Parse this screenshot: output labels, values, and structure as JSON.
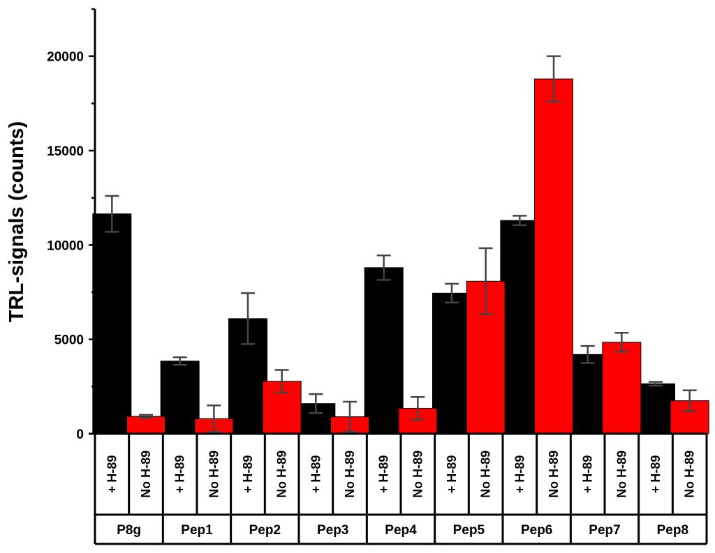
{
  "chart_data": {
    "type": "bar",
    "ylabel": "TRL-signals (counts)",
    "ylim": [
      0,
      22500
    ],
    "yticks": [
      0,
      5000,
      10000,
      15000,
      20000
    ],
    "groups": [
      "P8g",
      "Pep1",
      "Pep2",
      "Pep3",
      "Pep4",
      "Pep5",
      "Pep6",
      "Pep7",
      "Pep8"
    ],
    "conditions": [
      "+ H-89",
      "No H-89"
    ],
    "colors": {
      "+ H-89": "#000000",
      "No H-89": "#ff0000"
    },
    "series": [
      {
        "condition": "+ H-89",
        "values": [
          11650,
          3850,
          6100,
          1600,
          8800,
          7450,
          11300,
          4200,
          2650
        ],
        "errors": [
          950,
          200,
          1350,
          500,
          650,
          500,
          250,
          450,
          100
        ]
      },
      {
        "condition": "No H-89",
        "values": [
          920,
          800,
          2780,
          900,
          1350,
          8080,
          18800,
          4850,
          1750
        ],
        "errors": [
          80,
          700,
          600,
          800,
          600,
          1750,
          1200,
          500,
          550
        ]
      }
    ]
  }
}
